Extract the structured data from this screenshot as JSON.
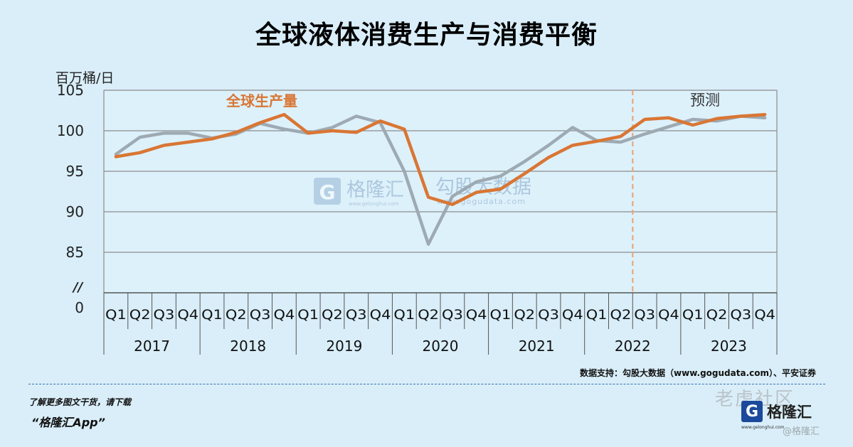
{
  "title": "全球液体消费生产与消费平衡",
  "unit_label": "百万桶/日",
  "series_label_production": "全球生产量",
  "forecast_label": "预测",
  "axis_break_mark": "//",
  "watermark": {
    "brand": "格隆汇",
    "site": "www.gelonghui.com",
    "data_brand": "勾股大数据",
    "data_site": "www.gogudata.com"
  },
  "source_note": "数据支持：勾股大数据（www.gogudata.com）、平安证券",
  "promo": {
    "line1": "了解更多图文干货，请下载",
    "line2": "“格隆汇App”"
  },
  "brand_block": {
    "logo_letter": "G",
    "name": "格隆汇",
    "site": "www.gelonghui.com"
  },
  "corner_watermark": {
    "community": "老虎社区",
    "handle": "@格隆汇"
  },
  "colors": {
    "production": "#d97634",
    "consumption": "#9eaab3",
    "forecast_line": "#e8a87c",
    "grid": "#888888",
    "plot_bg": "#ddf1fb"
  },
  "chart_data": {
    "type": "line",
    "title": "全球液体消费生产与消费平衡",
    "ylabel": "百万桶/日",
    "ylim": [
      85,
      105
    ],
    "y_ticks": [
      0,
      85,
      90,
      95,
      100,
      105
    ],
    "y_axis_break": true,
    "grid": true,
    "years": [
      "2017",
      "2018",
      "2019",
      "2020",
      "2021",
      "2022",
      "2023"
    ],
    "quarters": [
      "Q1",
      "Q2",
      "Q3",
      "Q4"
    ],
    "x": [
      "2017Q1",
      "2017Q2",
      "2017Q3",
      "2017Q4",
      "2018Q1",
      "2018Q2",
      "2018Q3",
      "2018Q4",
      "2019Q1",
      "2019Q2",
      "2019Q3",
      "2019Q4",
      "2020Q1",
      "2020Q2",
      "2020Q3",
      "2020Q4",
      "2021Q1",
      "2021Q2",
      "2021Q3",
      "2021Q4",
      "2022Q1",
      "2022Q2",
      "2022Q3",
      "2022Q4",
      "2023Q1",
      "2023Q2",
      "2023Q3",
      "2023Q4"
    ],
    "forecast_start": "2022Q3",
    "forecast_label": "预测",
    "series": [
      {
        "name": "全球生产量",
        "values": [
          96.8,
          97.3,
          98.2,
          98.6,
          99.0,
          99.8,
          101.0,
          102.0,
          99.7,
          100.0,
          99.8,
          101.2,
          100.2,
          91.8,
          90.9,
          92.4,
          92.8,
          94.7,
          96.7,
          98.2,
          98.7,
          99.3,
          101.4,
          101.6,
          100.7,
          101.5,
          101.8,
          102.0
        ]
      },
      {
        "values": [
          97.1,
          99.2,
          99.7,
          99.7,
          99.1,
          99.6,
          100.9,
          100.2,
          99.7,
          100.4,
          101.8,
          101.0,
          95.0,
          86.0,
          91.9,
          93.7,
          94.4,
          96.2,
          98.2,
          100.4,
          98.8,
          98.6,
          99.6,
          100.5,
          101.4,
          101.2,
          101.8,
          101.6
        ]
      }
    ]
  }
}
